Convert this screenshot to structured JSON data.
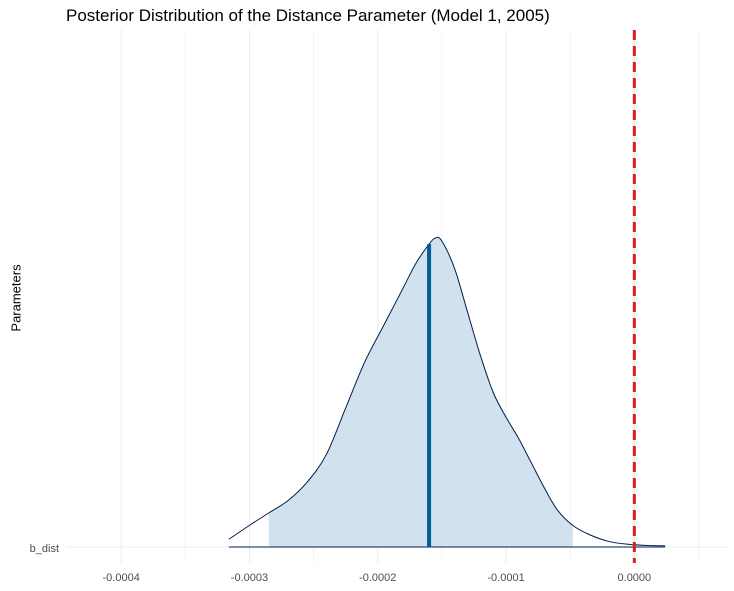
{
  "chart_data": {
    "type": "area",
    "title": "Posterior Distribution of the Distance Parameter (Model 1, 2005)",
    "xlabel": "",
    "ylabel": "Parameters",
    "xlim": [
      -0.000443,
      7.3e-05
    ],
    "x_ticks": [
      -0.0004,
      -0.0003,
      -0.0002,
      -0.0001,
      0.0
    ],
    "x_tick_labels": [
      "-0.0004",
      "-0.0003",
      "-0.0002",
      "-0.0001",
      "0.0000"
    ],
    "categories": [
      "b_dist"
    ],
    "grid": true,
    "legend": "none",
    "density": {
      "parameter": "b_dist",
      "x": [
        -0.000316,
        -0.0003,
        -0.000285,
        -0.00027,
        -0.000255,
        -0.00024,
        -0.000225,
        -0.00021,
        -0.000195,
        -0.00018,
        -0.00017,
        -0.00016,
        -0.000155,
        -0.00015,
        -0.00014,
        -0.00013,
        -0.00012,
        -0.00011,
        -0.0001,
        -9e-05,
        -8e-05,
        -7e-05,
        -6e-05,
        -4.8e-05,
        -3.5e-05,
        -2e-05,
        -5e-06,
        1e-05,
        2.4e-05
      ],
      "y": [
        0.025,
        0.07,
        0.11,
        0.15,
        0.21,
        0.3,
        0.45,
        0.6,
        0.72,
        0.84,
        0.92,
        0.98,
        1.0,
        0.99,
        0.9,
        0.76,
        0.62,
        0.5,
        0.42,
        0.35,
        0.27,
        0.19,
        0.12,
        0.07,
        0.04,
        0.018,
        0.009,
        0.005,
        0.004
      ]
    },
    "interval": {
      "low": -0.000285,
      "high": -4.8e-05
    },
    "point_estimate": -0.00016,
    "reference_line": 0.0,
    "colors": {
      "fill": "#d1e1ed",
      "outline": "#011f4b",
      "median": "#005b96",
      "reference": "#e41a1c",
      "grid": "#ebebeb"
    }
  }
}
